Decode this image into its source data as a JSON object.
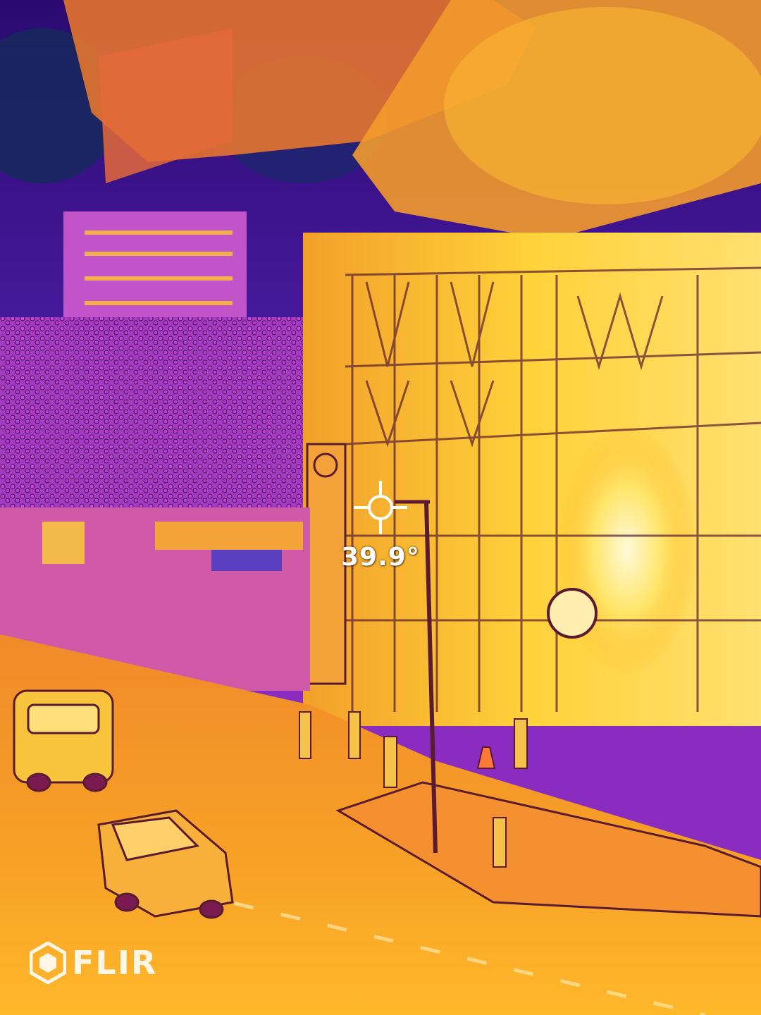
{
  "thermal_readout": {
    "spot_temperature": "39.9°"
  },
  "brand": {
    "name": "FLIR"
  },
  "palette": {
    "cold": "#1d0a5a",
    "cool": "#5a1aa8",
    "mid": "#c03cc0",
    "warm": "#f4731e",
    "hot": "#ffc21e",
    "hottest": "#fff3a0"
  },
  "icons": {
    "reticle": "crosshair-icon",
    "logo": "flir-logo-icon"
  }
}
